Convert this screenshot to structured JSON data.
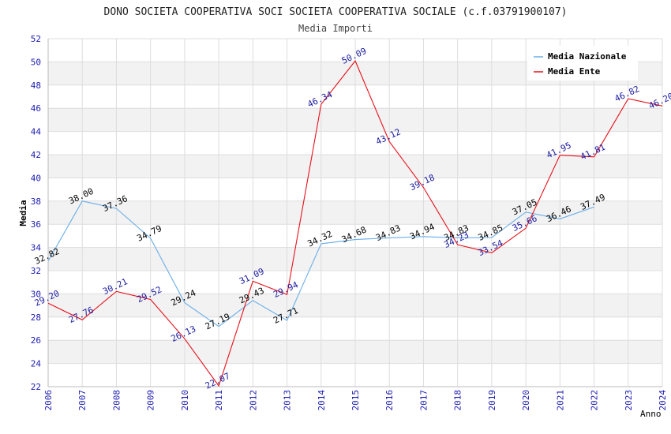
{
  "chart_data": {
    "type": "line",
    "title": "DONO SOCIETA COOPERATIVA SOCI SOCIETA COOPERATIVA SOCIALE (c.f.03791900107)",
    "subtitle": "Media Importi",
    "xlabel": "Anno",
    "ylabel": "Media",
    "ylim": [
      22,
      52
    ],
    "yticks": [
      22,
      24,
      26,
      28,
      30,
      32,
      34,
      36,
      38,
      40,
      42,
      44,
      46,
      48,
      50,
      52
    ],
    "x": [
      2006,
      2007,
      2008,
      2009,
      2010,
      2011,
      2012,
      2013,
      2014,
      2015,
      2016,
      2017,
      2018,
      2019,
      2020,
      2021,
      2022,
      2023,
      2024
    ],
    "legend_position": "top-right",
    "series": [
      {
        "name": "Media Nazionale",
        "color": "#6aaee8",
        "label_color": "#000000",
        "values": [
          32.82,
          38.0,
          37.36,
          34.79,
          29.24,
          27.19,
          29.43,
          27.71,
          34.32,
          34.68,
          34.83,
          34.94,
          34.83,
          34.85,
          37.05,
          36.46,
          37.49,
          null,
          null
        ],
        "labels": [
          "32.82",
          "38.00",
          "37.36",
          "34.79",
          "29.24",
          "27.19",
          "29.43",
          "27.71",
          "34.32",
          "34.68",
          "34.83",
          "34.94",
          "34.83",
          "34.85",
          "37.05",
          "36.46",
          "37.49",
          null,
          null
        ]
      },
      {
        "name": "Media Ente",
        "color": "#e8101a",
        "label_color": "#1a1aa0",
        "values": [
          29.2,
          27.76,
          30.21,
          29.52,
          26.13,
          22.07,
          31.09,
          29.94,
          46.34,
          50.09,
          43.12,
          39.18,
          34.23,
          33.54,
          35.66,
          41.95,
          41.81,
          46.82,
          46.2
        ],
        "labels": [
          "29.20",
          "27.76",
          "30.21",
          "29.52",
          "26.13",
          "22.07",
          "31.09",
          "29.94",
          "46.34",
          "50.09",
          "43.12",
          "39.18",
          "34.23",
          "33.54",
          "35.66",
          "41.95",
          "41.81",
          "46.82",
          "46.20"
        ]
      }
    ]
  }
}
